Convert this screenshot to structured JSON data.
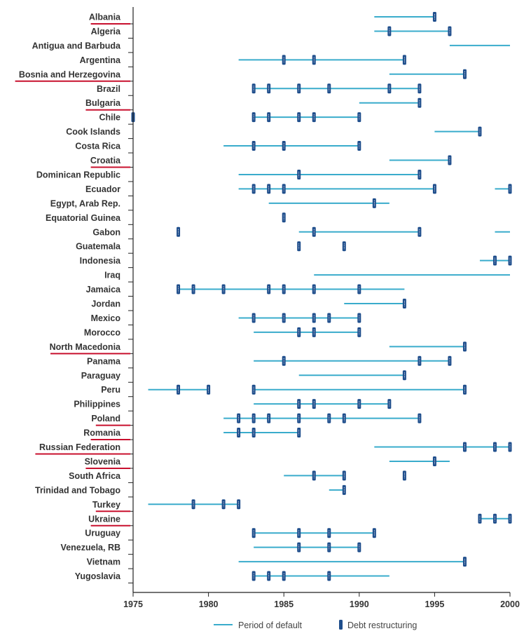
{
  "colors": {
    "default_line": "#3aaccc",
    "restructuring": "#1f4e8c",
    "axis": "#222222",
    "highlight_underline": "#c8102e"
  },
  "legend": {
    "default_label": "Period of default",
    "restructuring_label": "Debt restructuring"
  },
  "chart_data": {
    "type": "timeline",
    "xlim": [
      1975,
      2000
    ],
    "xticks": [
      1975,
      1980,
      1985,
      1990,
      1995,
      2000
    ],
    "series": [
      {
        "name": "Period of default",
        "style": "line"
      },
      {
        "name": "Debt restructuring",
        "style": "marker"
      }
    ],
    "rows": [
      {
        "country": "Albania",
        "highlight": true,
        "default": [
          [
            1991,
            1995
          ]
        ],
        "restructuring": [
          1995
        ]
      },
      {
        "country": "Algeria",
        "highlight": false,
        "default": [
          [
            1991,
            1996
          ]
        ],
        "restructuring": [
          1992,
          1996
        ]
      },
      {
        "country": "Antigua and Barbuda",
        "highlight": false,
        "default": [
          [
            1996,
            2000
          ]
        ],
        "restructuring": []
      },
      {
        "country": "Argentina",
        "highlight": false,
        "default": [
          [
            1982,
            1993
          ]
        ],
        "restructuring": [
          1985,
          1987,
          1993
        ]
      },
      {
        "country": "Bosnia and Herzegovina",
        "highlight": true,
        "default": [
          [
            1992,
            1997
          ]
        ],
        "restructuring": [
          1997
        ]
      },
      {
        "country": "Brazil",
        "highlight": false,
        "default": [
          [
            1983,
            1994
          ]
        ],
        "restructuring": [
          1983,
          1984,
          1986,
          1988,
          1992,
          1994
        ]
      },
      {
        "country": "Bulgaria",
        "highlight": true,
        "default": [
          [
            1990,
            1994
          ]
        ],
        "restructuring": [
          1994
        ]
      },
      {
        "country": "Chile",
        "highlight": false,
        "default": [
          [
            1983,
            1990
          ]
        ],
        "restructuring": [
          1975,
          1983,
          1984,
          1986,
          1987,
          1990
        ]
      },
      {
        "country": "Cook Islands",
        "highlight": false,
        "default": [
          [
            1995,
            1998
          ]
        ],
        "restructuring": [
          1998
        ]
      },
      {
        "country": "Costa Rica",
        "highlight": false,
        "default": [
          [
            1981,
            1990
          ]
        ],
        "restructuring": [
          1983,
          1985,
          1990
        ]
      },
      {
        "country": "Croatia",
        "highlight": true,
        "default": [
          [
            1992,
            1996
          ]
        ],
        "restructuring": [
          1996
        ]
      },
      {
        "country": "Dominican Republic",
        "highlight": false,
        "default": [
          [
            1982,
            1994
          ]
        ],
        "restructuring": [
          1986,
          1994
        ]
      },
      {
        "country": "Ecuador",
        "highlight": false,
        "default": [
          [
            1982,
            1995
          ],
          [
            1999,
            2000
          ]
        ],
        "restructuring": [
          1983,
          1984,
          1985,
          1995,
          2000
        ]
      },
      {
        "country": "Egypt, Arab Rep.",
        "highlight": false,
        "default": [
          [
            1984,
            1992
          ]
        ],
        "restructuring": [
          1991
        ]
      },
      {
        "country": "Equatorial Guinea",
        "highlight": false,
        "default": [],
        "restructuring": [
          1985
        ]
      },
      {
        "country": "Gabon",
        "highlight": false,
        "default": [
          [
            1986,
            1994
          ],
          [
            1999,
            2000
          ]
        ],
        "restructuring": [
          1978,
          1987,
          1994
        ]
      },
      {
        "country": "Guatemala",
        "highlight": false,
        "default": [],
        "restructuring": [
          1986,
          1989
        ]
      },
      {
        "country": "Indonesia",
        "highlight": false,
        "default": [
          [
            1998,
            2000
          ]
        ],
        "restructuring": [
          1999,
          2000
        ]
      },
      {
        "country": "Iraq",
        "highlight": false,
        "default": [
          [
            1987,
            2000
          ]
        ],
        "restructuring": []
      },
      {
        "country": "Jamaica",
        "highlight": false,
        "default": [
          [
            1978,
            1993
          ]
        ],
        "restructuring": [
          1978,
          1979,
          1981,
          1984,
          1985,
          1987,
          1990
        ]
      },
      {
        "country": "Jordan",
        "highlight": false,
        "default": [
          [
            1989,
            1993
          ]
        ],
        "restructuring": [
          1993
        ]
      },
      {
        "country": "Mexico",
        "highlight": false,
        "default": [
          [
            1982,
            1990
          ]
        ],
        "restructuring": [
          1983,
          1985,
          1987,
          1988,
          1990
        ]
      },
      {
        "country": "Morocco",
        "highlight": false,
        "default": [
          [
            1983,
            1990
          ]
        ],
        "restructuring": [
          1986,
          1987,
          1990
        ]
      },
      {
        "country": "North Macedonia",
        "highlight": true,
        "default": [
          [
            1992,
            1997
          ]
        ],
        "restructuring": [
          1997
        ]
      },
      {
        "country": "Panama",
        "highlight": false,
        "default": [
          [
            1983,
            1996
          ]
        ],
        "restructuring": [
          1985,
          1994,
          1996
        ]
      },
      {
        "country": "Paraguay",
        "highlight": false,
        "default": [
          [
            1986,
            1993
          ]
        ],
        "restructuring": [
          1993
        ]
      },
      {
        "country": "Peru",
        "highlight": false,
        "default": [
          [
            1976,
            1980
          ],
          [
            1983,
            1997
          ]
        ],
        "restructuring": [
          1978,
          1980,
          1983,
          1997
        ]
      },
      {
        "country": "Philippines",
        "highlight": false,
        "default": [
          [
            1983,
            1992
          ]
        ],
        "restructuring": [
          1986,
          1987,
          1990,
          1992
        ]
      },
      {
        "country": "Poland",
        "highlight": true,
        "default": [
          [
            1981,
            1994
          ]
        ],
        "restructuring": [
          1982,
          1983,
          1984,
          1986,
          1988,
          1989,
          1994
        ]
      },
      {
        "country": "Romania",
        "highlight": true,
        "default": [
          [
            1981,
            1986
          ]
        ],
        "restructuring": [
          1982,
          1983,
          1986
        ]
      },
      {
        "country": "Russian Federation",
        "highlight": true,
        "default": [
          [
            1991,
            2000
          ]
        ],
        "restructuring": [
          1997,
          1999,
          2000
        ]
      },
      {
        "country": "Slovenia",
        "highlight": true,
        "default": [
          [
            1992,
            1996
          ]
        ],
        "restructuring": [
          1995
        ]
      },
      {
        "country": "South Africa",
        "highlight": false,
        "default": [
          [
            1985,
            1989
          ]
        ],
        "restructuring": [
          1987,
          1989,
          1993
        ]
      },
      {
        "country": "Trinidad and Tobago",
        "highlight": false,
        "default": [
          [
            1988,
            1989
          ]
        ],
        "restructuring": [
          1989
        ]
      },
      {
        "country": "Turkey",
        "highlight": true,
        "default": [
          [
            1976,
            1982
          ]
        ],
        "restructuring": [
          1979,
          1981,
          1982
        ]
      },
      {
        "country": "Ukraine",
        "highlight": true,
        "default": [
          [
            1998,
            2000
          ]
        ],
        "restructuring": [
          1998,
          1999,
          2000
        ]
      },
      {
        "country": "Uruguay",
        "highlight": false,
        "default": [
          [
            1983,
            1991
          ]
        ],
        "restructuring": [
          1983,
          1986,
          1988,
          1991
        ]
      },
      {
        "country": "Venezuela, RB",
        "highlight": false,
        "default": [
          [
            1983,
            1990
          ]
        ],
        "restructuring": [
          1986,
          1988,
          1990
        ]
      },
      {
        "country": "Vietnam",
        "highlight": false,
        "default": [
          [
            1982,
            1997
          ]
        ],
        "restructuring": [
          1997
        ]
      },
      {
        "country": "Yugoslavia",
        "highlight": false,
        "default": [
          [
            1983,
            1992
          ]
        ],
        "restructuring": [
          1983,
          1984,
          1985,
          1988
        ]
      }
    ]
  }
}
